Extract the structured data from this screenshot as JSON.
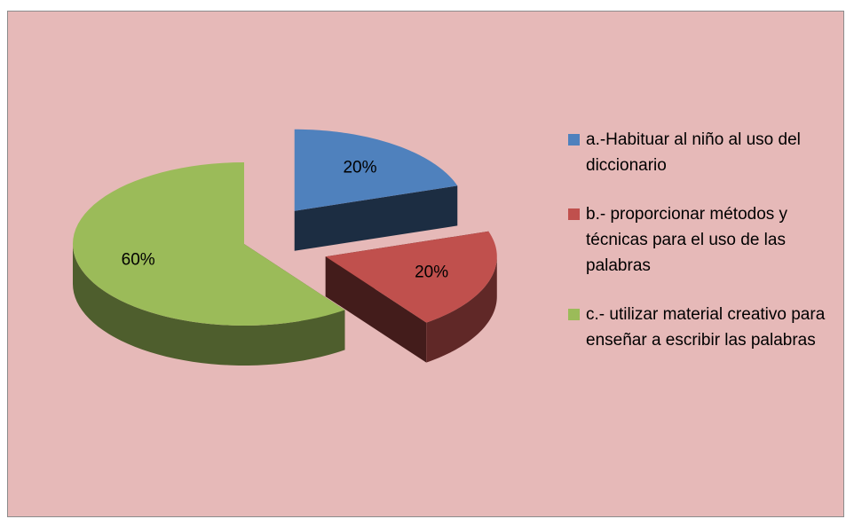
{
  "chart_data": {
    "type": "pie",
    "categories": [
      "a.-Habituar al niño al uso del diccionario",
      "b.- proporcionar métodos y técnicas para el uso de las  palabras",
      "c.- utilizar material creativo para enseñar a escribir las palabras"
    ],
    "values": [
      20,
      20,
      60
    ],
    "value_labels": [
      "20%",
      "20%",
      "60%"
    ],
    "colors": [
      "#4f81bd",
      "#c0504d",
      "#9bbb59"
    ],
    "legend": "right"
  }
}
